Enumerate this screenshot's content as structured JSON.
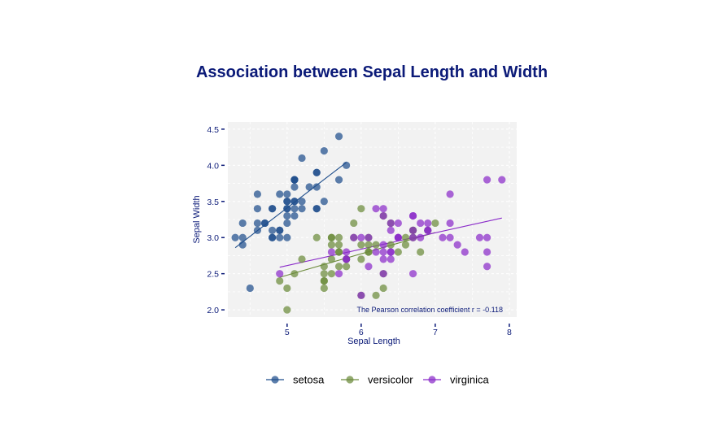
{
  "chart_data": {
    "type": "scatter",
    "title": "Association between Sepal Length and Width",
    "xlabel": "Sepal Length",
    "ylabel": "Sepal Width",
    "xlim": [
      4.2,
      8.1
    ],
    "ylim": [
      1.9,
      4.6
    ],
    "xticks": [
      5,
      6,
      7,
      8
    ],
    "yticks": [
      2.0,
      2.5,
      3.0,
      3.5,
      4.0,
      4.5
    ],
    "ytick_labels": [
      "2.0",
      "2.5",
      "3.0",
      "3.5",
      "4.0",
      "4.5"
    ],
    "grid": true,
    "legend_position": "bottom",
    "annotation": "The Pearson correlation coefficient r =  -0.118",
    "series": [
      {
        "name": "setosa",
        "color": "#1f4e8c",
        "points": [
          [
            5.1,
            3.5
          ],
          [
            4.9,
            3.0
          ],
          [
            4.7,
            3.2
          ],
          [
            4.6,
            3.1
          ],
          [
            5.0,
            3.6
          ],
          [
            5.4,
            3.9
          ],
          [
            4.6,
            3.4
          ],
          [
            5.0,
            3.4
          ],
          [
            4.4,
            2.9
          ],
          [
            4.9,
            3.1
          ],
          [
            5.4,
            3.7
          ],
          [
            4.8,
            3.4
          ],
          [
            4.8,
            3.0
          ],
          [
            4.3,
            3.0
          ],
          [
            5.8,
            4.0
          ],
          [
            5.7,
            4.4
          ],
          [
            5.4,
            3.9
          ],
          [
            5.1,
            3.5
          ],
          [
            5.7,
            3.8
          ],
          [
            5.1,
            3.8
          ],
          [
            5.4,
            3.4
          ],
          [
            5.1,
            3.7
          ],
          [
            4.6,
            3.6
          ],
          [
            5.1,
            3.3
          ],
          [
            4.8,
            3.4
          ],
          [
            5.0,
            3.0
          ],
          [
            5.0,
            3.4
          ],
          [
            5.2,
            3.5
          ],
          [
            5.2,
            3.4
          ],
          [
            4.7,
            3.2
          ],
          [
            4.8,
            3.1
          ],
          [
            5.4,
            3.4
          ],
          [
            5.2,
            4.1
          ],
          [
            5.5,
            4.2
          ],
          [
            4.9,
            3.1
          ],
          [
            5.0,
            3.2
          ],
          [
            5.5,
            3.5
          ],
          [
            4.9,
            3.6
          ],
          [
            4.4,
            3.0
          ],
          [
            5.1,
            3.4
          ],
          [
            5.0,
            3.5
          ],
          [
            4.5,
            2.3
          ],
          [
            4.4,
            3.2
          ],
          [
            5.0,
            3.5
          ],
          [
            5.1,
            3.8
          ],
          [
            4.8,
            3.0
          ],
          [
            5.1,
            3.8
          ],
          [
            4.6,
            3.2
          ],
          [
            5.3,
            3.7
          ],
          [
            5.0,
            3.3
          ]
        ],
        "trend": [
          [
            4.3,
            2.86
          ],
          [
            5.8,
            4.04
          ]
        ]
      },
      {
        "name": "versicolor",
        "color": "#6b8a3a",
        "points": [
          [
            7.0,
            3.2
          ],
          [
            6.4,
            3.2
          ],
          [
            6.9,
            3.1
          ],
          [
            5.5,
            2.3
          ],
          [
            6.5,
            2.8
          ],
          [
            5.7,
            2.8
          ],
          [
            6.3,
            3.3
          ],
          [
            4.9,
            2.4
          ],
          [
            6.6,
            2.9
          ],
          [
            5.2,
            2.7
          ],
          [
            5.0,
            2.0
          ],
          [
            5.9,
            3.0
          ],
          [
            6.0,
            2.2
          ],
          [
            6.1,
            2.9
          ],
          [
            5.6,
            2.9
          ],
          [
            6.7,
            3.1
          ],
          [
            5.6,
            3.0
          ],
          [
            5.8,
            2.7
          ],
          [
            6.2,
            2.2
          ],
          [
            5.6,
            2.5
          ],
          [
            5.9,
            3.2
          ],
          [
            6.1,
            2.8
          ],
          [
            6.3,
            2.5
          ],
          [
            6.1,
            2.8
          ],
          [
            6.4,
            2.9
          ],
          [
            6.6,
            3.0
          ],
          [
            6.8,
            2.8
          ],
          [
            6.7,
            3.0
          ],
          [
            6.0,
            2.9
          ],
          [
            5.7,
            2.6
          ],
          [
            5.5,
            2.4
          ],
          [
            5.5,
            2.4
          ],
          [
            5.8,
            2.7
          ],
          [
            6.0,
            2.7
          ],
          [
            5.4,
            3.0
          ],
          [
            6.0,
            3.4
          ],
          [
            6.7,
            3.1
          ],
          [
            6.3,
            2.3
          ],
          [
            5.6,
            3.0
          ],
          [
            5.5,
            2.5
          ],
          [
            5.5,
            2.6
          ],
          [
            6.1,
            3.0
          ],
          [
            5.8,
            2.6
          ],
          [
            5.0,
            2.3
          ],
          [
            5.6,
            2.7
          ],
          [
            5.7,
            3.0
          ],
          [
            5.7,
            2.9
          ],
          [
            6.2,
            2.9
          ],
          [
            5.1,
            2.5
          ],
          [
            5.7,
            2.8
          ]
        ],
        "trend": [
          [
            4.9,
            2.45
          ],
          [
            7.0,
            3.07
          ]
        ]
      },
      {
        "name": "virginica",
        "color": "#8a2bc9",
        "points": [
          [
            6.3,
            3.3
          ],
          [
            5.8,
            2.7
          ],
          [
            7.1,
            3.0
          ],
          [
            6.3,
            2.9
          ],
          [
            6.5,
            3.0
          ],
          [
            7.6,
            3.0
          ],
          [
            4.9,
            2.5
          ],
          [
            7.3,
            2.9
          ],
          [
            6.7,
            2.5
          ],
          [
            7.2,
            3.6
          ],
          [
            6.5,
            3.2
          ],
          [
            6.4,
            2.7
          ],
          [
            6.8,
            3.0
          ],
          [
            5.7,
            2.5
          ],
          [
            5.8,
            2.8
          ],
          [
            6.4,
            3.2
          ],
          [
            6.5,
            3.0
          ],
          [
            7.7,
            3.8
          ],
          [
            7.7,
            2.6
          ],
          [
            6.0,
            2.2
          ],
          [
            6.9,
            3.2
          ],
          [
            5.6,
            2.8
          ],
          [
            7.7,
            2.8
          ],
          [
            6.3,
            2.7
          ],
          [
            6.7,
            3.3
          ],
          [
            7.2,
            3.2
          ],
          [
            6.2,
            2.8
          ],
          [
            6.1,
            3.0
          ],
          [
            6.4,
            2.8
          ],
          [
            7.2,
            3.0
          ],
          [
            7.4,
            2.8
          ],
          [
            7.9,
            3.8
          ],
          [
            6.4,
            2.8
          ],
          [
            6.3,
            2.8
          ],
          [
            6.1,
            2.6
          ],
          [
            7.7,
            3.0
          ],
          [
            6.3,
            3.4
          ],
          [
            6.4,
            3.1
          ],
          [
            6.0,
            3.0
          ],
          [
            6.9,
            3.1
          ],
          [
            6.7,
            3.1
          ],
          [
            6.9,
            3.1
          ],
          [
            5.8,
            2.7
          ],
          [
            6.8,
            3.2
          ],
          [
            6.7,
            3.3
          ],
          [
            6.7,
            3.0
          ],
          [
            6.3,
            2.5
          ],
          [
            6.5,
            3.0
          ],
          [
            6.2,
            3.4
          ],
          [
            5.9,
            3.0
          ]
        ],
        "trend": [
          [
            4.9,
            2.59
          ],
          [
            7.9,
            3.27
          ]
        ]
      }
    ]
  }
}
